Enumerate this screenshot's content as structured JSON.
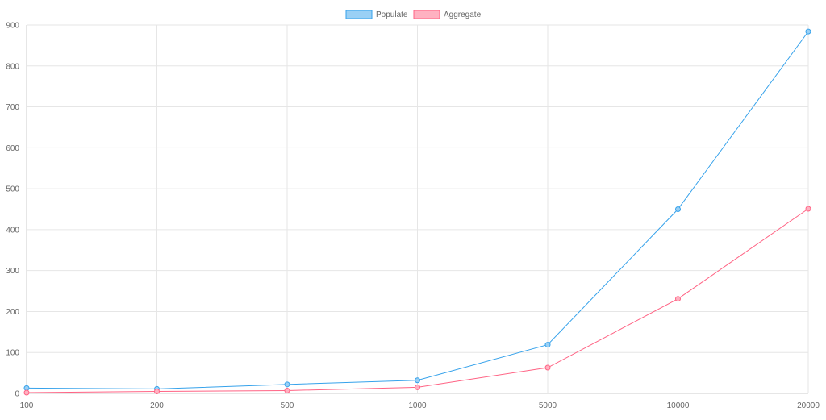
{
  "chart_data": {
    "type": "line",
    "categories": [
      "100",
      "200",
      "500",
      "1000",
      "5000",
      "10000",
      "20000"
    ],
    "series": [
      {
        "name": "Populate",
        "values": [
          13,
          11,
          22,
          32,
          119,
          450,
          884
        ],
        "color": "#36a2eb",
        "fill": "#9ad0f5"
      },
      {
        "name": "Aggregate",
        "values": [
          2,
          5,
          7,
          15,
          63,
          231,
          451
        ],
        "color": "#ff6384",
        "fill": "#ffb1c1"
      }
    ],
    "y_ticks": [
      "0",
      "100",
      "200",
      "300",
      "400",
      "500",
      "600",
      "700",
      "800",
      "900"
    ],
    "ylim": [
      0,
      900
    ],
    "grid": true,
    "legend": "top-center"
  }
}
